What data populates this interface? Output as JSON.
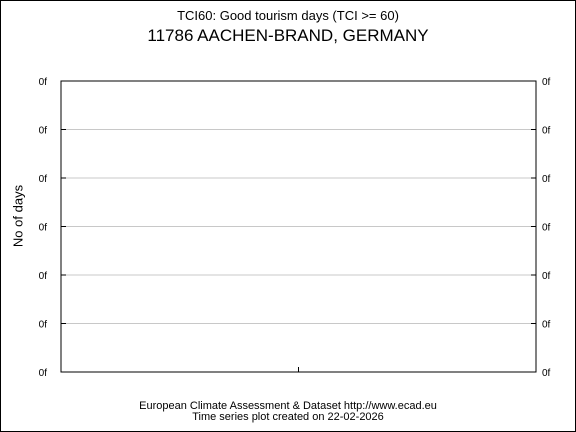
{
  "header": {
    "title": "TCI60: Good tourism days (TCI >= 60)",
    "station": "11786 AACHEN-BRAND, GERMANY"
  },
  "footer": {
    "line1": "European Climate Assessment & Dataset  http://www.ecad.eu",
    "line2": "Time series plot created on 22-02-2026"
  },
  "chart_data": {
    "type": "line",
    "title": "TCI60: Good tourism days (TCI >= 60)",
    "subtitle": "11786 AACHEN-BRAND, GERMANY",
    "xlabel": "",
    "ylabel": "No of days",
    "y_tick_labels": [
      "0f",
      "0f",
      "0f",
      "0f",
      "0f",
      "0f",
      "0f"
    ],
    "series": [],
    "grid": true,
    "line_color": "#000000",
    "grid_color": "#c8c8c8"
  }
}
